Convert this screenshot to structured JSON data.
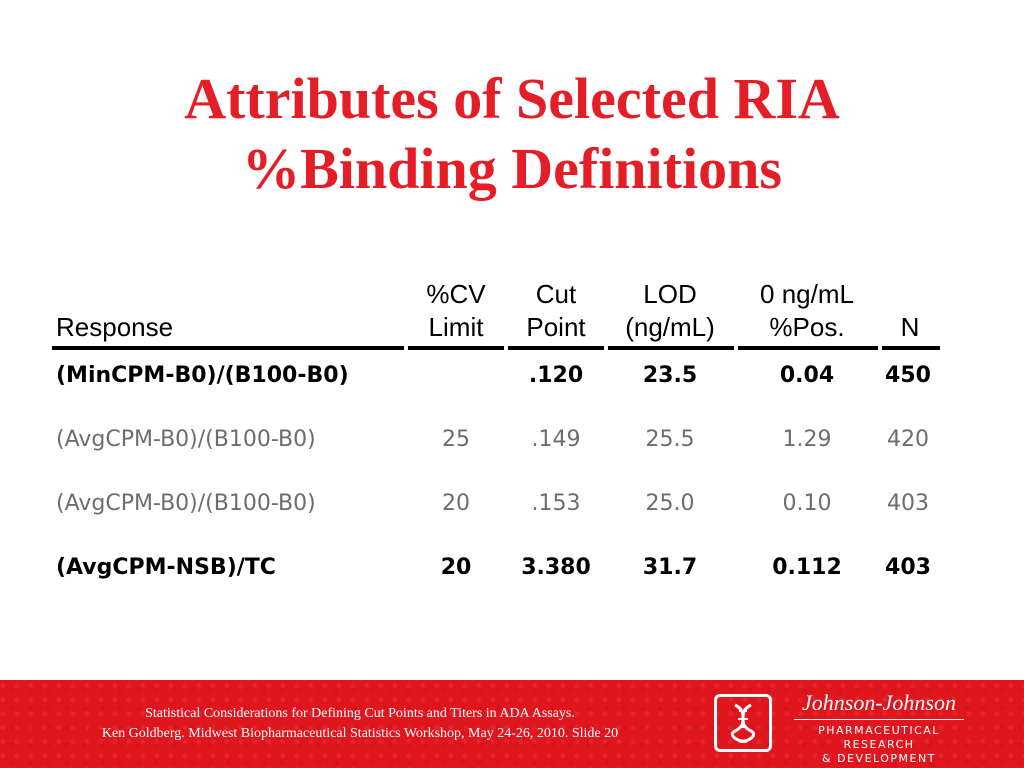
{
  "title": {
    "line1": "Attributes of Selected RIA",
    "line2": "%Binding Definitions"
  },
  "table": {
    "headers": [
      {
        "line1": "",
        "line2": "Response"
      },
      {
        "line1": "%CV",
        "line2": "Limit"
      },
      {
        "line1": "Cut",
        "line2": "Point"
      },
      {
        "line1": "LOD",
        "line2": "(ng/mL)"
      },
      {
        "line1": "0 ng/mL",
        "line2": "%Pos."
      },
      {
        "line1": "",
        "line2": "N"
      }
    ],
    "rows": [
      {
        "response": "(MinCPM-B0)/(B100-B0)",
        "cv_limit": "",
        "cut_point": ".120",
        "lod": "23.5",
        "pos": "0.04",
        "n": "450",
        "style": "dark"
      },
      {
        "response": "(AvgCPM-B0)/(B100-B0)",
        "cv_limit": "25",
        "cut_point": ".149",
        "lod": "25.5",
        "pos": "1.29",
        "n": "420",
        "style": "grey"
      },
      {
        "response": "(AvgCPM-B0)/(B100-B0)",
        "cv_limit": "20",
        "cut_point": ".153",
        "lod": "25.0",
        "pos": "0.10",
        "n": "403",
        "style": "grey"
      },
      {
        "response": "(AvgCPM-NSB)/TC",
        "cv_limit": "20",
        "cut_point": "3.380",
        "lod": "31.7",
        "pos": "0.112",
        "n": "403",
        "style": "dark"
      }
    ]
  },
  "footer": {
    "line1": "Statistical Considerations for Defining Cut Points and Titers in ADA Assays.",
    "line2": "Ken Goldberg.  Midwest Biopharmaceutical Statistics Workshop, May 24-26, 2010.  Slide 20"
  },
  "brand": {
    "name": "Johnson-Johnson",
    "subtitle1": "PHARMACEUTICAL RESEARCH",
    "subtitle2": "& DEVELOPMENT"
  },
  "colors": {
    "title": "#e41e26",
    "footer_bg": "#e0161e",
    "grey_text": "#6d6d6d"
  }
}
